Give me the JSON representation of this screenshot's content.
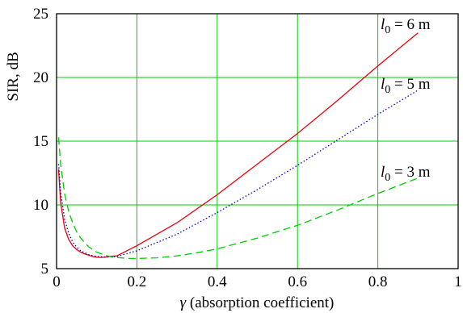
{
  "chart_data": {
    "type": "line",
    "title": "",
    "xlabel_symbol": "γ",
    "xlabel": " (absorption coefficient)",
    "ylabel": "SIR, dB",
    "xlim": [
      0,
      1
    ],
    "ylim": [
      5,
      25
    ],
    "xticks": [
      "0",
      "0.2",
      "0.4",
      "0.6",
      "0.8",
      "1"
    ],
    "yticks": [
      "5",
      "10",
      "15",
      "20",
      "25"
    ],
    "grid": true,
    "series": [
      {
        "label_prefix": "l",
        "label_sub": "0",
        "label_suffix": " = 6 m",
        "color": "#e8000b",
        "style": "solid",
        "x": [
          0.005,
          0.01,
          0.02,
          0.03,
          0.04,
          0.05,
          0.06,
          0.07,
          0.08,
          0.09,
          0.1,
          0.11,
          0.12,
          0.13,
          0.15,
          0.2,
          0.3,
          0.4,
          0.5,
          0.6,
          0.7,
          0.8,
          0.9
        ],
        "y": [
          12.8,
          10.2,
          8.2,
          7.3,
          6.8,
          6.5,
          6.3,
          6.15,
          6.05,
          5.95,
          5.9,
          5.88,
          5.9,
          5.95,
          6.0,
          6.8,
          8.6,
          10.8,
          13.2,
          15.6,
          18.2,
          20.9,
          23.5
        ]
      },
      {
        "label_prefix": "l",
        "label_sub": "0",
        "label_suffix": " = 5 m",
        "color": "#0000cc",
        "style": "dotted",
        "x": [
          0.005,
          0.01,
          0.02,
          0.03,
          0.04,
          0.05,
          0.06,
          0.08,
          0.1,
          0.12,
          0.14,
          0.15,
          0.2,
          0.3,
          0.4,
          0.5,
          0.6,
          0.7,
          0.8,
          0.9
        ],
        "y": [
          13.2,
          11.0,
          8.9,
          7.8,
          7.1,
          6.7,
          6.4,
          6.1,
          5.95,
          5.92,
          5.93,
          5.95,
          6.4,
          7.7,
          9.4,
          11.2,
          13.1,
          15.1,
          17.1,
          19.0
        ]
      },
      {
        "label_prefix": "l",
        "label_sub": "0",
        "label_suffix": " = 3 m",
        "color": "#00cc00",
        "style": "dashed",
        "x": [
          0.005,
          0.01,
          0.02,
          0.03,
          0.04,
          0.05,
          0.06,
          0.08,
          0.1,
          0.12,
          0.14,
          0.16,
          0.18,
          0.2,
          0.25,
          0.3,
          0.35,
          0.4,
          0.5,
          0.6,
          0.7,
          0.8,
          0.9
        ],
        "y": [
          15.3,
          13.2,
          10.9,
          9.5,
          8.6,
          7.9,
          7.4,
          6.7,
          6.3,
          6.05,
          5.9,
          5.85,
          5.8,
          5.8,
          5.85,
          6.0,
          6.25,
          6.55,
          7.4,
          8.4,
          9.6,
          10.9,
          12.1
        ]
      }
    ]
  }
}
